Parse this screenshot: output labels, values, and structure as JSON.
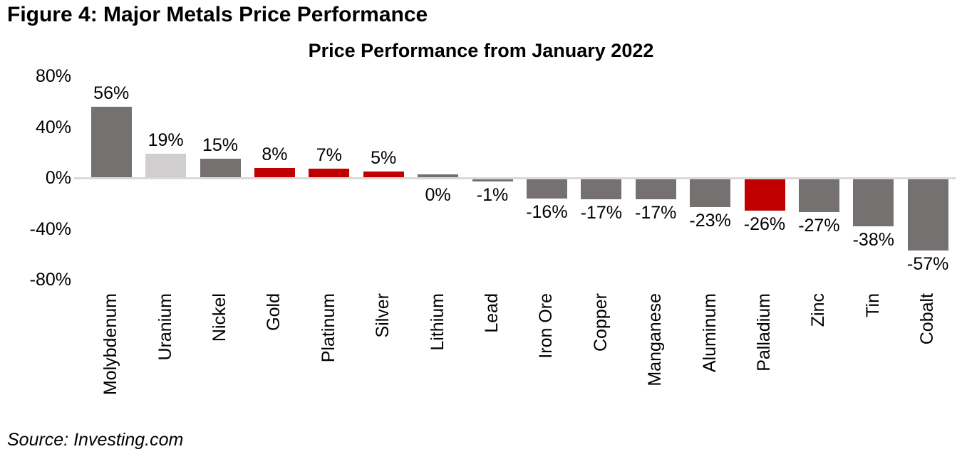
{
  "figure_title": "Figure 4: Major Metals Price Performance",
  "source_note": "Source: Investing.com",
  "colors": {
    "background": "#ffffff",
    "text": "#000000",
    "bar_gray": "#767171",
    "bar_light_gray": "#d0cece",
    "bar_red": "#c00000",
    "zero_line": "#d9d9d9"
  },
  "chart_data": {
    "type": "bar",
    "title": "Price Performance from January 2022",
    "xlabel": "",
    "ylabel": "",
    "categories": [
      "Molybdenum",
      "Uranium",
      "Nickel",
      "Gold",
      "Platinum",
      "Silver",
      "Lithium",
      "Lead",
      "Iron Ore",
      "Copper",
      "Manganese",
      "Aluminum",
      "Palladium",
      "Zinc",
      "Tin",
      "Cobalt"
    ],
    "values": [
      56,
      19,
      15,
      8,
      7,
      5,
      0,
      -1,
      -16,
      -17,
      -17,
      -23,
      -26,
      -27,
      -38,
      -57
    ],
    "value_labels": [
      "56%",
      "19%",
      "15%",
      "8%",
      "7%",
      "5%",
      "0%",
      "-1%",
      "-16%",
      "-17%",
      "-17%",
      "-23%",
      "-26%",
      "-27%",
      "-38%",
      "-57%"
    ],
    "bar_colors": [
      "#767171",
      "#d0cece",
      "#767171",
      "#c00000",
      "#c00000",
      "#c00000",
      "#767171",
      "#767171",
      "#767171",
      "#767171",
      "#767171",
      "#767171",
      "#c00000",
      "#767171",
      "#767171",
      "#767171"
    ],
    "y_axis": {
      "tick_labels": [
        "80%",
        "40%",
        "0%",
        "-40%",
        "-80%"
      ],
      "tick_values": [
        80,
        40,
        0,
        -40,
        -80
      ],
      "ylim": [
        -80,
        80
      ]
    },
    "grid": false,
    "legend_position": "none"
  }
}
